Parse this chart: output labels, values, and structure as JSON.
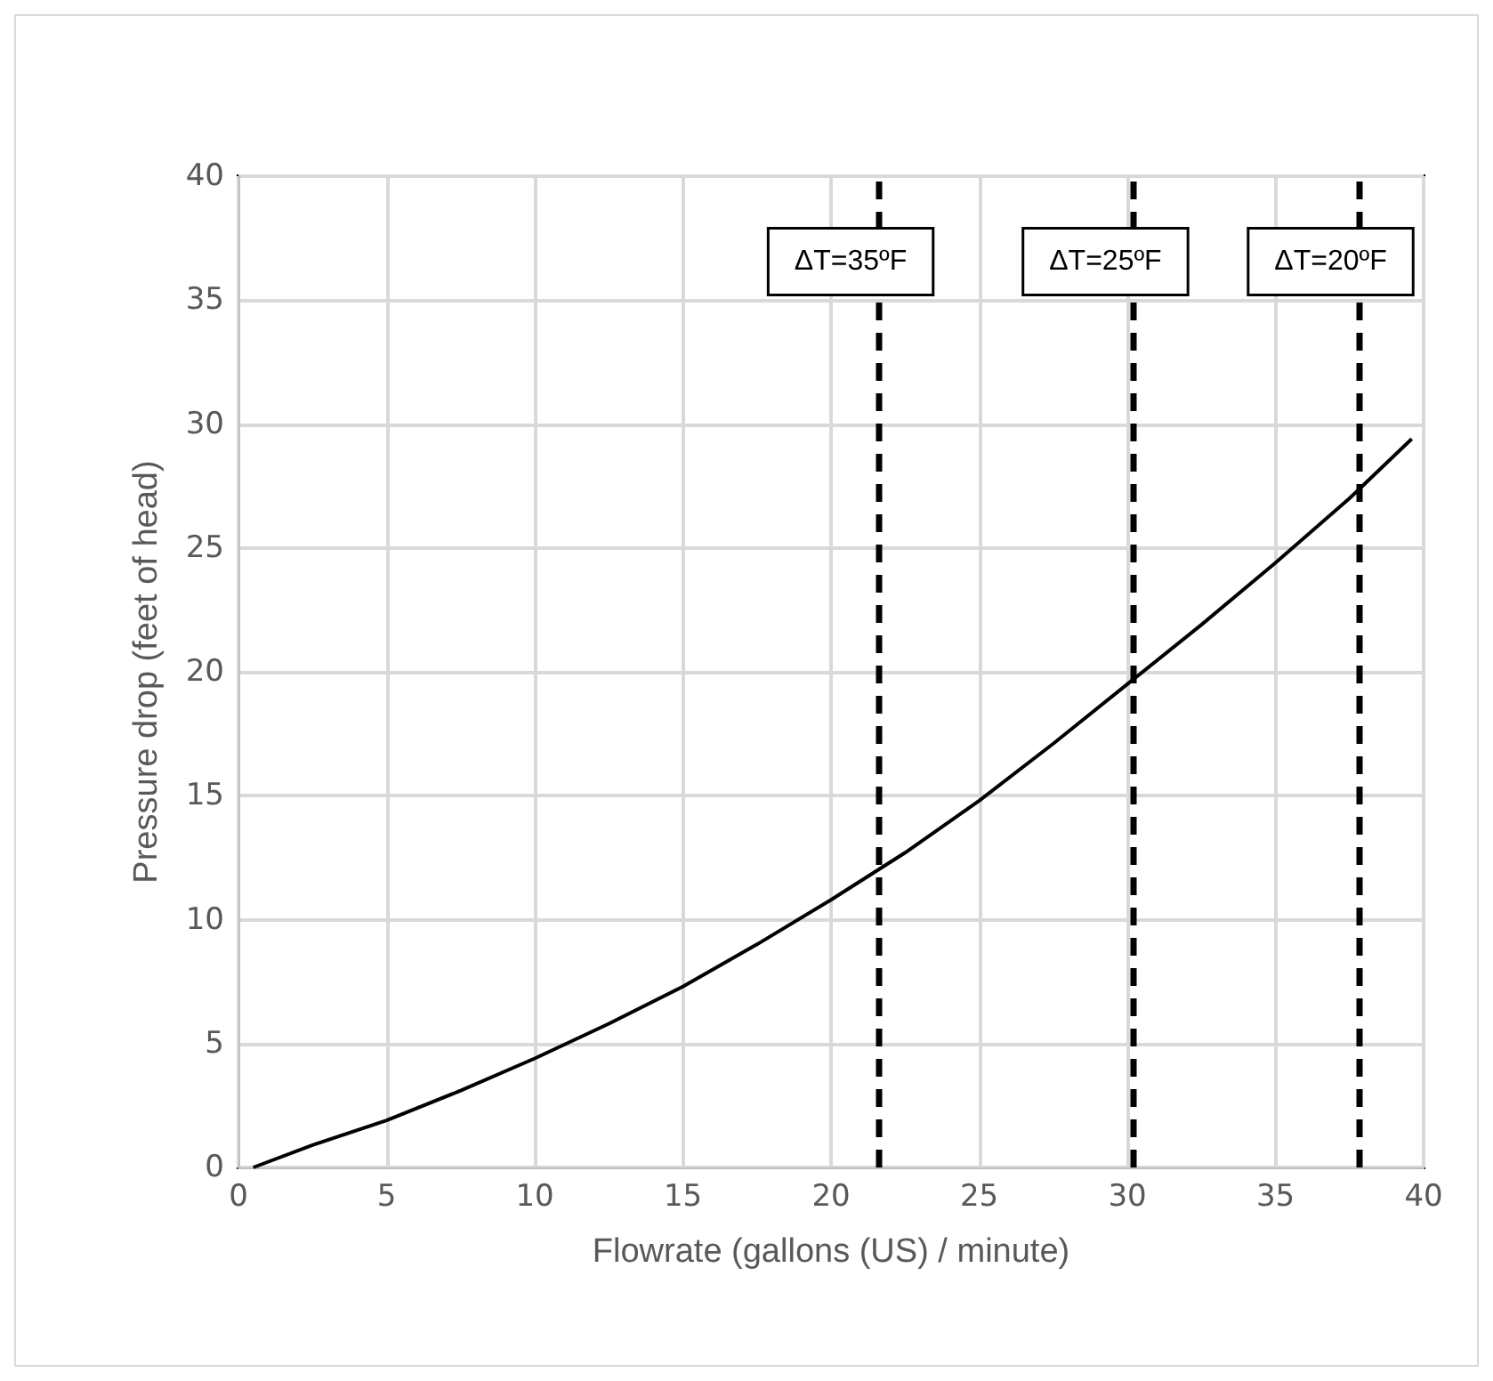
{
  "chart_data": {
    "type": "line",
    "xlabel": "Flowrate (gallons (US) / minute)",
    "ylabel": "Pressure drop (feet of head)",
    "x": [
      0.5,
      2.5,
      5,
      7.5,
      10,
      12.5,
      15,
      17.5,
      20,
      22.5,
      25,
      27.5,
      30,
      32.5,
      35,
      37.5,
      39.6
    ],
    "series": [
      {
        "color": "#000000",
        "values": [
          0,
          0.9,
          1.9,
          3.1,
          4.4,
          5.8,
          7.3,
          9.0,
          10.8,
          12.7,
          14.8,
          17.1,
          19.5,
          21.9,
          24.4,
          27.0,
          29.4
        ]
      }
    ],
    "xlim": [
      0,
      40
    ],
    "xticks": [
      0,
      5,
      10,
      15,
      20,
      25,
      30,
      35,
      40
    ],
    "ylim": [
      0,
      40
    ],
    "yticks": [
      0,
      5,
      10,
      15,
      20,
      25,
      30,
      35,
      40
    ],
    "grid": true,
    "marker": "none",
    "line_style": "solid",
    "annotations": [
      "ΔT=35ºF",
      "ΔT=25ºF",
      "ΔT=20ºF"
    ],
    "ref_lines": [
      {
        "axis": "x",
        "value": 21.6,
        "color": "#000000",
        "line_style": "dashed"
      },
      {
        "axis": "x",
        "value": 30.2,
        "color": "#000000",
        "line_style": "dashed"
      },
      {
        "axis": "x",
        "value": 37.8,
        "color": "#000000",
        "line_style": "dashed"
      }
    ]
  }
}
